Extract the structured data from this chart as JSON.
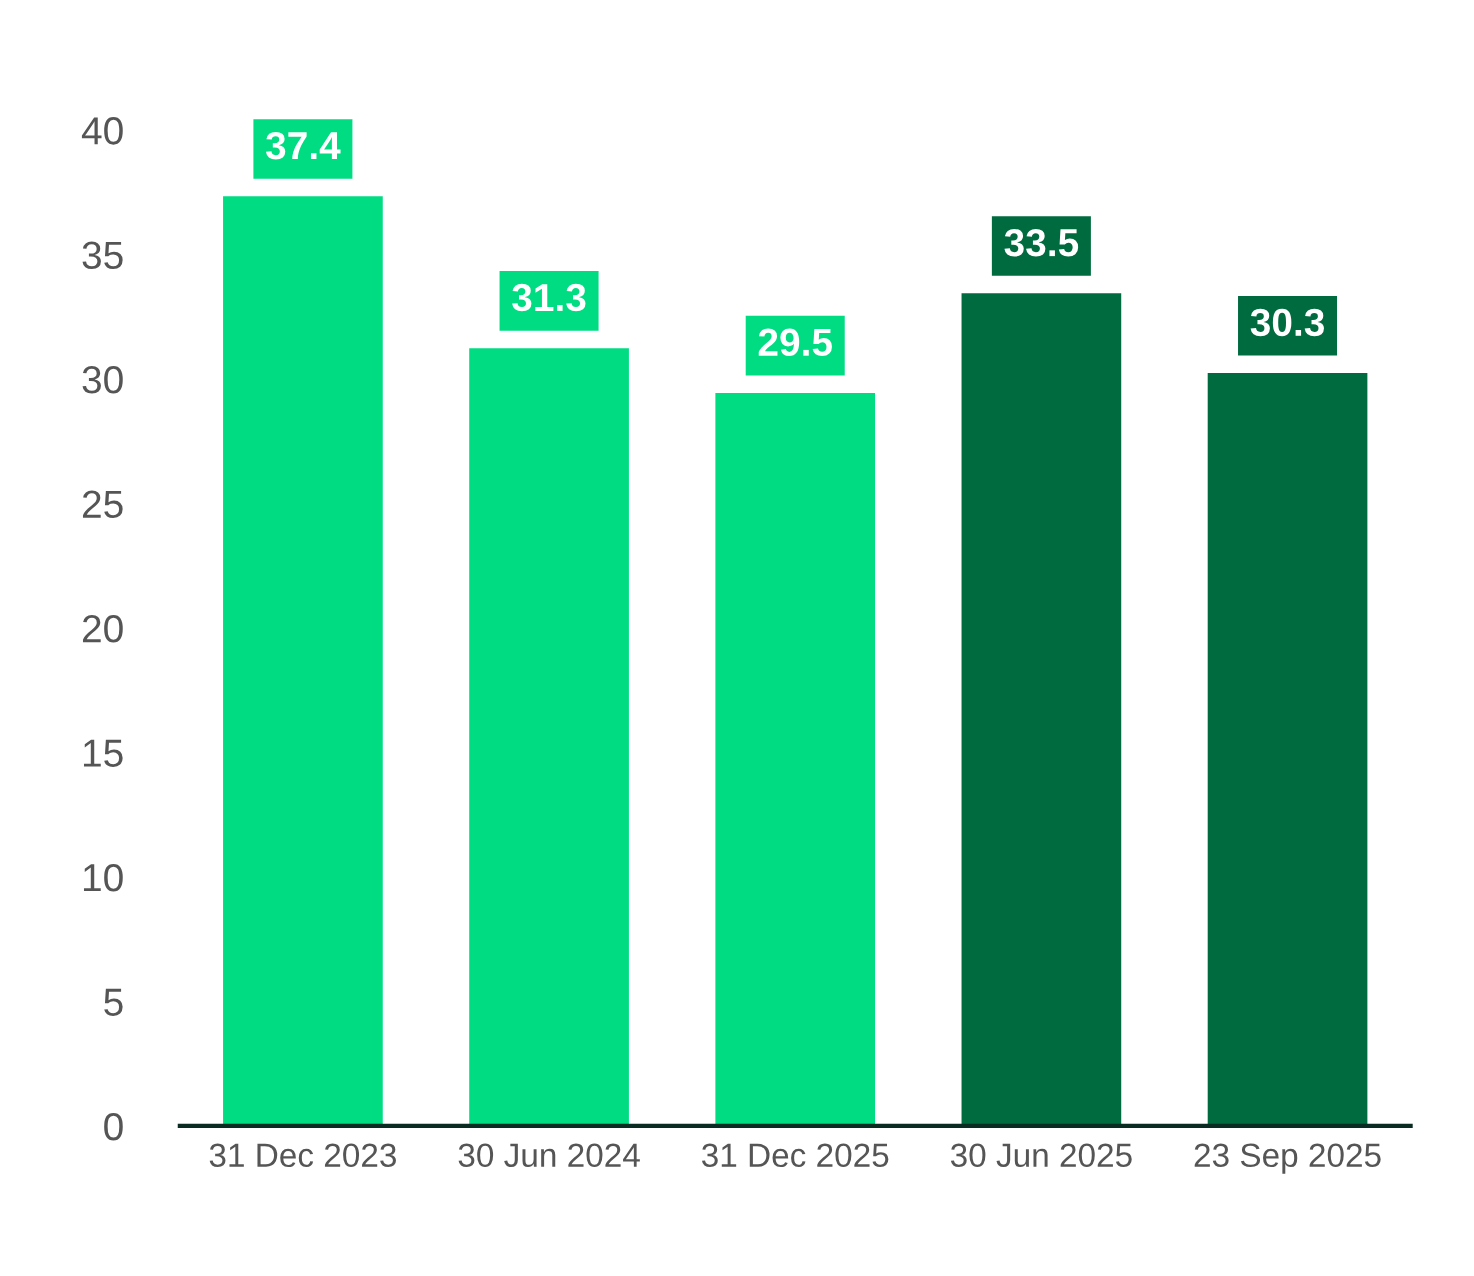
{
  "chart_data": {
    "type": "bar",
    "categories": [
      "31 Dec 2023",
      "30 Jun 2024",
      "31 Dec 2025",
      "30 Jun 2025",
      "23 Sep 2025"
    ],
    "values": [
      37.4,
      31.3,
      29.5,
      33.5,
      30.3
    ],
    "colors": [
      "#00dc82",
      "#00dc82",
      "#00dc82",
      "#006b3f",
      "#006b3f"
    ],
    "ylim": [
      0,
      40
    ],
    "yticks": [
      0,
      5,
      10,
      15,
      20,
      25,
      30,
      35,
      40
    ],
    "data_labels": true,
    "grid": false,
    "legend": false
  }
}
